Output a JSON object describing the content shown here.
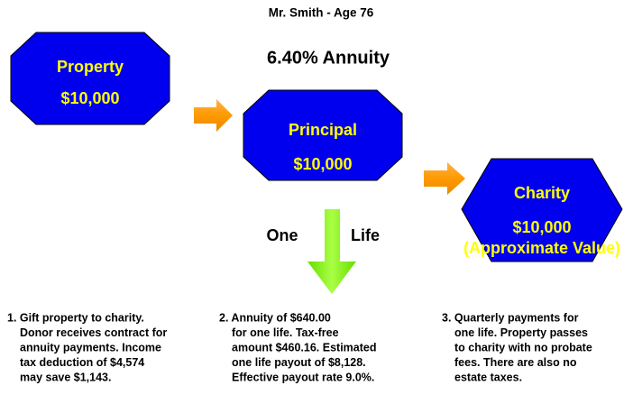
{
  "header": {
    "title": "Mr. Smith - Age 76",
    "subtitle": "6.40% Annuity"
  },
  "nodes": [
    {
      "label": "Property",
      "amount": "$10,000"
    },
    {
      "label": "Principal",
      "amount": "$10,000"
    },
    {
      "label": "Charity",
      "amount": "$10,000",
      "note": "(Approximate Value)"
    }
  ],
  "arrow_labels": [
    "One",
    "Life"
  ],
  "steps": [
    [
      "1. Gift property to charity.",
      "Donor receives contract for",
      "annuity payments.  Income",
      "tax deduction of $4,574",
      "may save $1,143."
    ],
    [
      "2. Annuity of $640.00",
      "for one life.  Tax-free",
      "amount $460.16.  Estimated",
      "one life payout of $8,128.",
      "Effective payout rate 9.0%."
    ],
    [
      "3. Quarterly payments for",
      "one life. Property passes",
      "to charity with no probate",
      "fees.  There are also no",
      "estate taxes."
    ]
  ]
}
